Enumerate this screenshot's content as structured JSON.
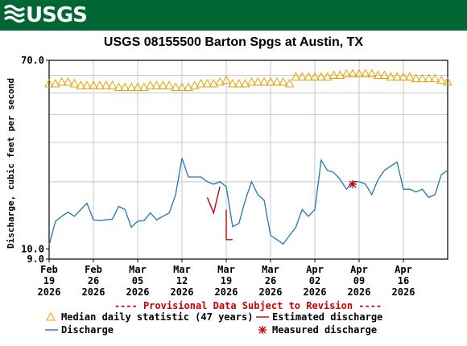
{
  "header": {
    "logo_text": "USGS"
  },
  "chart_data": {
    "type": "line",
    "title": "USGS 08155500 Barton Spgs at Austin, TX",
    "ylabel": "Discharge, cubic feet per second",
    "y_scale": "log",
    "ylim": [
      9.0,
      70.0
    ],
    "y_tick_labels": [
      {
        "value": 70.0,
        "label": "70.0"
      },
      {
        "value": 10.0,
        "label": "10.0"
      },
      {
        "value": 9.0,
        "label": "9.0"
      }
    ],
    "xlim": [
      "2026-02-19",
      "2026-04-23"
    ],
    "x_ticks": [
      {
        "date": "2026-02-19",
        "label": [
          "Feb",
          "19",
          "2026"
        ]
      },
      {
        "date": "2026-02-26",
        "label": [
          "Feb",
          "26",
          "2026"
        ]
      },
      {
        "date": "2026-03-05",
        "label": [
          "Mar",
          "05",
          "2026"
        ]
      },
      {
        "date": "2026-03-12",
        "label": [
          "Mar",
          "12",
          "2026"
        ]
      },
      {
        "date": "2026-03-19",
        "label": [
          "Mar",
          "19",
          "2026"
        ]
      },
      {
        "date": "2026-03-26",
        "label": [
          "Mar",
          "26",
          "2026"
        ]
      },
      {
        "date": "2026-04-02",
        "label": [
          "Apr",
          "02",
          "2026"
        ]
      },
      {
        "date": "2026-04-09",
        "label": [
          "Apr",
          "09",
          "2026"
        ]
      },
      {
        "date": "2026-04-16",
        "label": [
          "Apr",
          "16",
          "2026"
        ]
      }
    ],
    "grid": true,
    "provisional_note": "---- Provisional Data Subject to Revision ----",
    "series": [
      {
        "name": "Median daily statistic (47 years)",
        "marker": "triangle",
        "color": "#E8A200",
        "x": [
          "2026-02-19",
          "2026-02-20",
          "2026-02-21",
          "2026-02-22",
          "2026-02-23",
          "2026-02-24",
          "2026-02-25",
          "2026-02-26",
          "2026-02-27",
          "2026-02-28",
          "2026-03-01",
          "2026-03-02",
          "2026-03-03",
          "2026-03-04",
          "2026-03-05",
          "2026-03-06",
          "2026-03-07",
          "2026-03-08",
          "2026-03-09",
          "2026-03-10",
          "2026-03-11",
          "2026-03-12",
          "2026-03-13",
          "2026-03-14",
          "2026-03-15",
          "2026-03-16",
          "2026-03-17",
          "2026-03-18",
          "2026-03-19",
          "2026-03-20",
          "2026-03-21",
          "2026-03-22",
          "2026-03-23",
          "2026-03-24",
          "2026-03-25",
          "2026-03-26",
          "2026-03-27",
          "2026-03-28",
          "2026-03-29",
          "2026-03-30",
          "2026-03-31",
          "2026-04-01",
          "2026-04-02",
          "2026-04-03",
          "2026-04-04",
          "2026-04-05",
          "2026-04-06",
          "2026-04-07",
          "2026-04-08",
          "2026-04-09",
          "2026-04-10",
          "2026-04-11",
          "2026-04-12",
          "2026-04-13",
          "2026-04-14",
          "2026-04-15",
          "2026-04-16",
          "2026-04-17",
          "2026-04-18",
          "2026-04-19",
          "2026-04-20",
          "2026-04-21",
          "2026-04-22",
          "2026-04-23"
        ],
        "values": [
          55,
          55,
          56,
          56,
          55,
          54,
          54,
          54,
          54,
          54,
          54,
          53,
          53,
          53,
          53,
          53,
          54,
          54,
          54,
          54,
          53,
          53,
          53,
          54,
          55,
          55,
          55,
          56,
          57,
          55,
          55,
          55,
          56,
          56,
          56,
          56,
          56,
          56,
          55,
          59,
          59,
          59,
          59,
          59,
          59,
          60,
          60,
          61,
          61,
          61,
          61,
          61,
          60,
          60,
          59,
          59,
          59,
          59,
          58,
          58,
          58,
          58,
          57,
          56
        ]
      },
      {
        "name": "Discharge",
        "color": "#1E78B4",
        "x": [
          "2026-02-19",
          "2026-02-20",
          "2026-02-21",
          "2026-02-22",
          "2026-02-23",
          "2026-02-24",
          "2026-02-25",
          "2026-02-26",
          "2026-02-27",
          "2026-02-28",
          "2026-03-01",
          "2026-03-02",
          "2026-03-03",
          "2026-03-04",
          "2026-03-05",
          "2026-03-06",
          "2026-03-07",
          "2026-03-08",
          "2026-03-09",
          "2026-03-10",
          "2026-03-11",
          "2026-03-12",
          "2026-03-13",
          "2026-03-14",
          "2026-03-15",
          "2026-03-16",
          "2026-03-17",
          "2026-03-18",
          "2026-03-19",
          "2026-03-20",
          "2026-03-21",
          "2026-03-22",
          "2026-03-23",
          "2026-03-24",
          "2026-03-25",
          "2026-03-26",
          "2026-03-27",
          "2026-03-28",
          "2026-03-29",
          "2026-03-30",
          "2026-03-31",
          "2026-04-01",
          "2026-04-02",
          "2026-04-03",
          "2026-04-04",
          "2026-04-05",
          "2026-04-06",
          "2026-04-07",
          "2026-04-08",
          "2026-04-09",
          "2026-04-10",
          "2026-04-11",
          "2026-04-12",
          "2026-04-13",
          "2026-04-14",
          "2026-04-15",
          "2026-04-16",
          "2026-04-17",
          "2026-04-18",
          "2026-04-19",
          "2026-04-20",
          "2026-04-21",
          "2026-04-22",
          "2026-04-23"
        ],
        "values": [
          10.4,
          13.3,
          14.0,
          14.6,
          14.0,
          15.0,
          16.0,
          13.5,
          13.4,
          13.5,
          13.6,
          15.5,
          15.0,
          12.5,
          13.3,
          13.4,
          14.5,
          13.5,
          14.0,
          14.5,
          17.5,
          25.5,
          21.0,
          21.0,
          21.0,
          20.0,
          19.5,
          20.0,
          19.0,
          12.6,
          13.0,
          16.5,
          20.0,
          17.5,
          16.5,
          11.5,
          11.0,
          10.5,
          11.5,
          12.5,
          15.0,
          14.0,
          15.0,
          25.0,
          22.5,
          22.0,
          20.5,
          18.5,
          20.0,
          20.0,
          19.5,
          17.5,
          20.5,
          22.5,
          23.5,
          24.5,
          18.5,
          18.5,
          18.0,
          18.5,
          17.0,
          17.5,
          21.5,
          22.5
        ]
      },
      {
        "name": "Estimated discharge",
        "color": "#CC0000",
        "segments": [
          {
            "x": [
              "2026-03-16",
              "2026-03-17",
              "2026-03-18"
            ],
            "values": [
              17.0,
              14.5,
              19.0
            ]
          },
          {
            "x": [
              "2026-03-19",
              "2026-03-19",
              "2026-03-20"
            ],
            "values": [
              15.0,
              11.0,
              11.0
            ]
          }
        ]
      },
      {
        "name": "Measured discharge",
        "marker": "asterisk",
        "color": "#CC0000",
        "x": [
          "2026-04-08"
        ],
        "values": [
          19.5
        ]
      }
    ],
    "legend": {
      "placement": "bottom",
      "items": [
        {
          "label": "Median daily statistic (47 years)",
          "symbol": "triangle"
        },
        {
          "label": "Estimated discharge",
          "symbol": "red-line"
        },
        {
          "label": "Discharge",
          "symbol": "blue-line"
        },
        {
          "label": "Measured discharge",
          "symbol": "asterisk"
        }
      ]
    }
  }
}
